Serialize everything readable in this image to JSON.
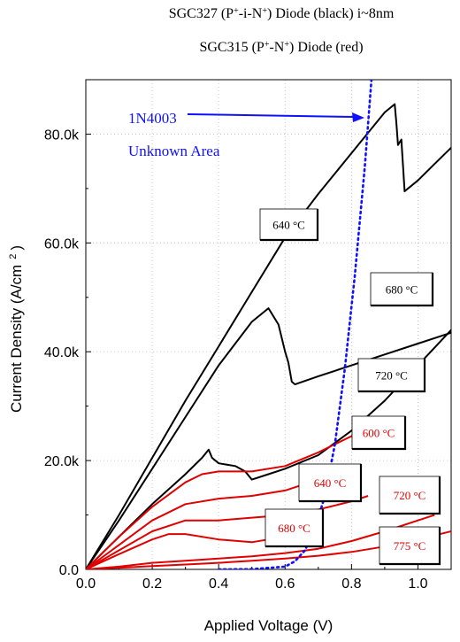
{
  "chart_data": {
    "type": "line",
    "title_lines": [
      {
        "parts": [
          {
            "t": "SGC327 (P"
          },
          {
            "t": "+",
            "sup": true
          },
          {
            "t": "-i-N"
          },
          {
            "t": "+",
            "sup": true
          },
          {
            "t": ") Diode (black) i~8nm"
          }
        ]
      },
      {
        "parts": [
          {
            "t": "SGC315 (P"
          },
          {
            "t": "+",
            "sup": true
          },
          {
            "t": "-N"
          },
          {
            "t": "+",
            "sup": true
          },
          {
            "t": ") Diode (red)"
          }
        ]
      }
    ],
    "xlabel": "Applied Voltage (V)",
    "ylabel": "Current Density (A/cm",
    "ylabel_sup": "2",
    "ylabel_close": ")",
    "xlim": [
      0.0,
      1.1
    ],
    "ylim": [
      0,
      90000
    ],
    "x_ticks": [
      0.0,
      0.2,
      0.4,
      0.6,
      0.8,
      1.0
    ],
    "x_tick_labels": [
      "0.0",
      "0.2",
      "0.4",
      "0.6",
      "0.8",
      "1.0"
    ],
    "y_ticks": [
      0,
      20000,
      40000,
      60000,
      80000
    ],
    "y_tick_labels": [
      "0.0",
      "20.0k",
      "40.0k",
      "60.0k",
      "80.0k"
    ],
    "grid": "dotted",
    "series": [
      {
        "group": "black",
        "color": "#000000",
        "x": [
          0,
          0.1,
          0.2,
          0.3,
          0.4,
          0.5,
          0.6,
          0.7,
          0.8,
          0.9,
          0.93,
          0.935,
          0.94,
          0.95,
          0.96,
          1.0,
          1.05,
          1.1
        ],
        "y": [
          0,
          10000,
          20500,
          31000,
          41000,
          51000,
          61000,
          69000,
          76500,
          84000,
          85500,
          82000,
          78000,
          79000,
          69500,
          71500,
          74500,
          77500
        ]
      },
      {
        "group": "black",
        "color": "#000000",
        "x": [
          0,
          0.1,
          0.2,
          0.3,
          0.4,
          0.5,
          0.55,
          0.58,
          0.6,
          0.61,
          0.62,
          0.63,
          0.7,
          0.8,
          0.9,
          1.0,
          1.1
        ],
        "y": [
          0,
          9000,
          18500,
          28000,
          37500,
          45500,
          48000,
          45000,
          40000,
          38000,
          34500,
          34000,
          35500,
          37500,
          39500,
          41500,
          43500
        ]
      },
      {
        "group": "black",
        "color": "#000000",
        "x": [
          0,
          0.1,
          0.2,
          0.3,
          0.35,
          0.37,
          0.38,
          0.4,
          0.45,
          0.48,
          0.5,
          0.55,
          0.6,
          0.7,
          0.8,
          0.9,
          1.0,
          1.1
        ],
        "y": [
          0,
          6000,
          12000,
          17500,
          20500,
          22000,
          20500,
          19500,
          19000,
          18000,
          16500,
          17500,
          18500,
          21000,
          25500,
          31000,
          37500,
          44000
        ]
      },
      {
        "group": "red",
        "color": "#e00000",
        "x": [
          0,
          0.1,
          0.2,
          0.3,
          0.35,
          0.4,
          0.5,
          0.6,
          0.7,
          0.8,
          0.85
        ],
        "y": [
          0,
          6000,
          11500,
          16000,
          17500,
          18000,
          18000,
          19000,
          21500,
          24500,
          26500
        ]
      },
      {
        "group": "red",
        "color": "#e00000",
        "x": [
          0,
          0.1,
          0.2,
          0.3,
          0.4,
          0.5,
          0.6,
          0.65
        ],
        "y": [
          0,
          4500,
          9000,
          12000,
          13000,
          13500,
          14500,
          15500
        ]
      },
      {
        "group": "red",
        "color": "#e00000",
        "x": [
          0,
          0.1,
          0.2,
          0.3,
          0.4,
          0.5,
          0.6,
          0.7,
          0.8,
          0.85
        ],
        "y": [
          0,
          3500,
          7000,
          9000,
          9000,
          9500,
          10000,
          11000,
          12500,
          13500
        ]
      },
      {
        "group": "red",
        "color": "#e00000",
        "x": [
          0,
          0.1,
          0.2,
          0.25,
          0.3,
          0.4,
          0.5,
          0.55
        ],
        "y": [
          0,
          2800,
          5500,
          6500,
          6500,
          5500,
          5000,
          5500
        ]
      },
      {
        "group": "red",
        "color": "#e00000",
        "x": [
          0,
          0.1,
          0.2,
          0.3,
          0.4,
          0.5,
          0.6,
          0.7,
          0.8,
          0.9,
          1.0,
          1.05
        ],
        "y": [
          0,
          500,
          1200,
          1600,
          2000,
          2400,
          3000,
          3800,
          5200,
          7000,
          9000,
          10000
        ]
      },
      {
        "group": "red",
        "color": "#e00000",
        "x": [
          0,
          0.1,
          0.2,
          0.3,
          0.4,
          0.5,
          0.6,
          0.7,
          0.8,
          0.9,
          1.0,
          1.1
        ],
        "y": [
          0,
          300,
          600,
          900,
          1200,
          1600,
          2000,
          2500,
          3200,
          4200,
          5500,
          7000
        ]
      },
      {
        "group": "blue-dotted",
        "color": "#1010ff",
        "style": "dotted",
        "x": [
          0.4,
          0.5,
          0.6,
          0.63,
          0.66,
          0.69,
          0.72,
          0.75,
          0.78,
          0.81,
          0.84,
          0.86
        ],
        "y": [
          0,
          50,
          500,
          1500,
          3500,
          7500,
          13500,
          23000,
          37000,
          54000,
          74000,
          90000
        ]
      }
    ],
    "annotations": [
      {
        "text": "1N4003",
        "color": "#1010ff"
      },
      {
        "text": "Unknown Area",
        "color": "#1010ff"
      },
      {
        "text": "640 °C",
        "color": "#000000"
      },
      {
        "text": "680 °C",
        "color": "#000000"
      },
      {
        "text": "720 °C",
        "color": "#000000"
      },
      {
        "text": "600 °C",
        "color": "#e00000"
      },
      {
        "text": "640 °C",
        "color": "#e00000"
      },
      {
        "text": "720 °C",
        "color": "#e00000"
      },
      {
        "text": "680 °C",
        "color": "#e00000"
      },
      {
        "text": "775 °C",
        "color": "#e00000"
      }
    ]
  }
}
